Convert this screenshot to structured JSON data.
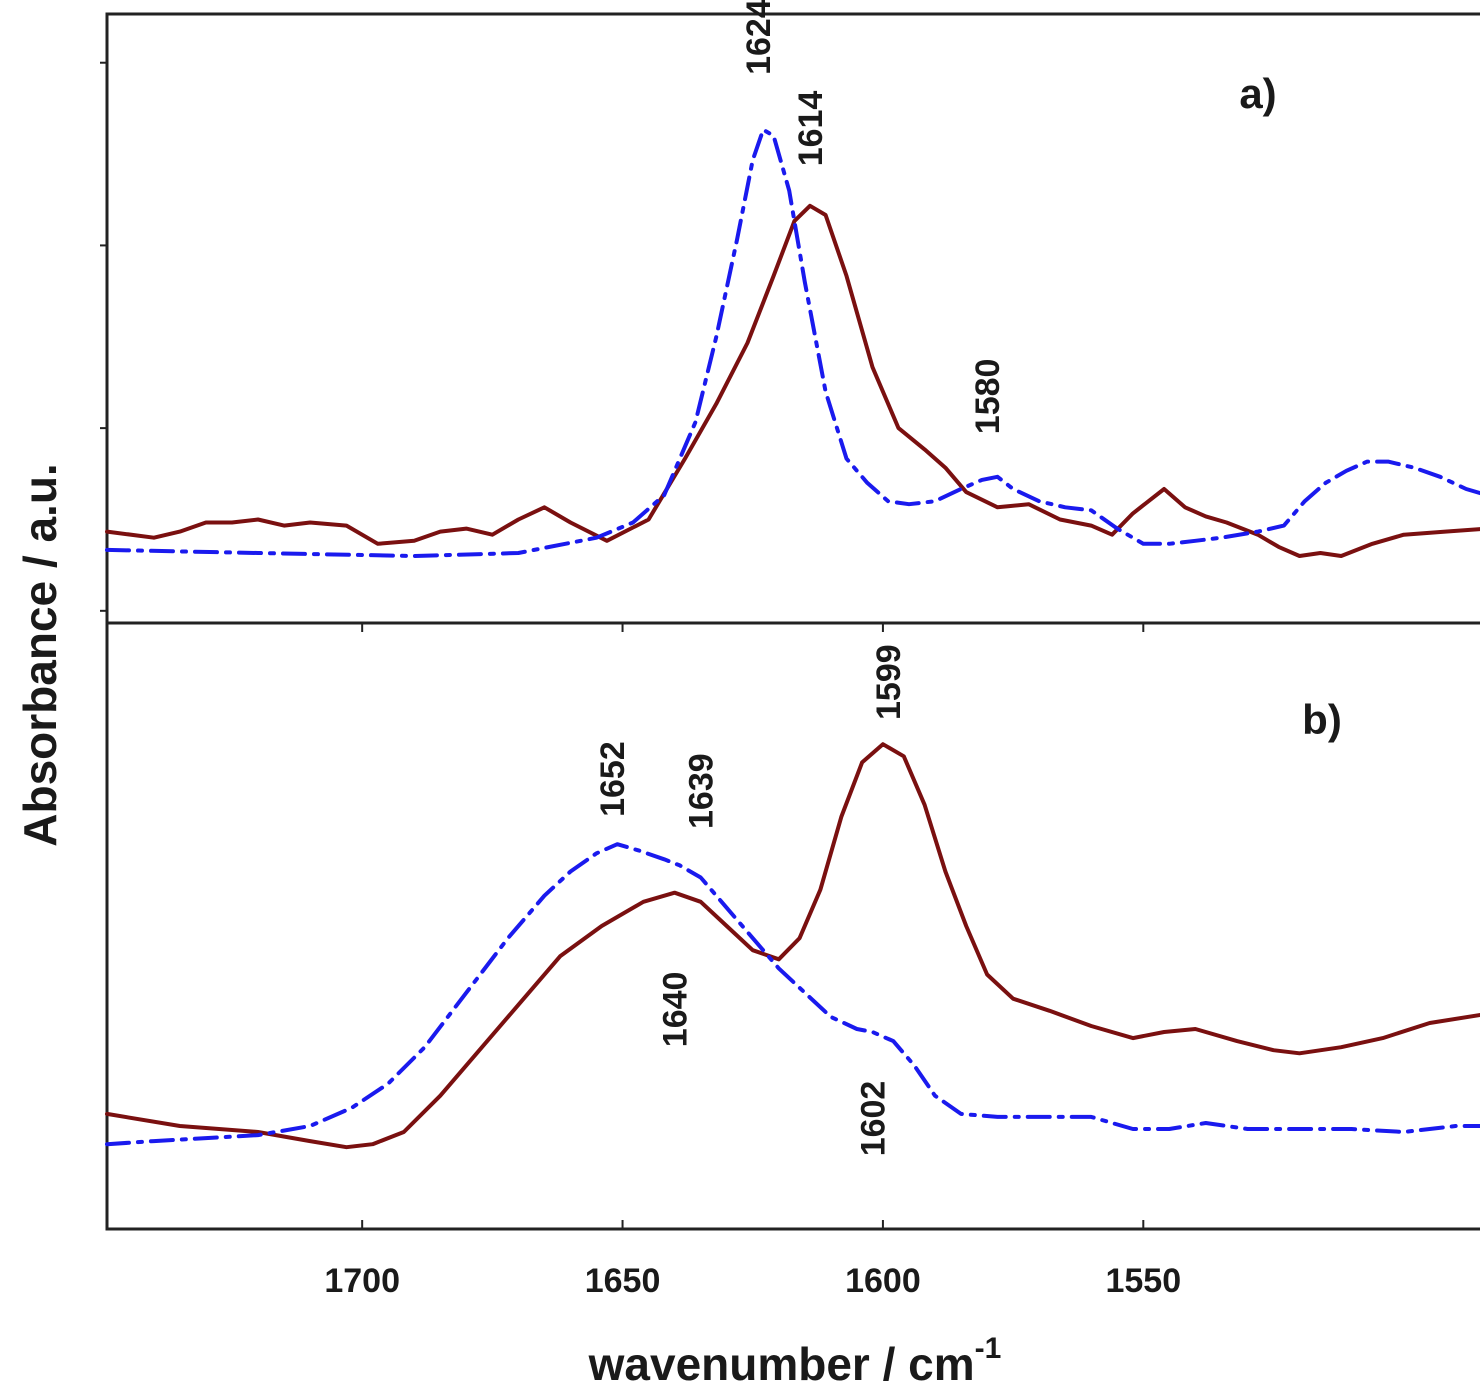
{
  "chart_data": {
    "type": "line",
    "ylabel": "Absorbance / a.u.",
    "xlabel": "wavenumber / cm",
    "xlabel_superscript": "-1",
    "x_reversed": true,
    "xlim": [
      1749,
      1484
    ],
    "x_ticks": [
      1700,
      1650,
      1600,
      1550
    ],
    "colors": {
      "solid": "#7a1010",
      "dashdot": "#1a1aee"
    },
    "panels": [
      {
        "label": "a)",
        "ylim": [
          0,
          1
        ],
        "y_ticks": [
          0.02,
          0.32,
          0.62,
          0.92
        ],
        "series": [
          {
            "style": "solid",
            "points": [
              [
                1749,
                0.15
              ],
              [
                1740,
                0.14
              ],
              [
                1735,
                0.15
              ],
              [
                1730,
                0.165
              ],
              [
                1725,
                0.165
              ],
              [
                1720,
                0.17
              ],
              [
                1715,
                0.16
              ],
              [
                1710,
                0.165
              ],
              [
                1703,
                0.16
              ],
              [
                1697,
                0.13
              ],
              [
                1690,
                0.135
              ],
              [
                1685,
                0.15
              ],
              [
                1680,
                0.155
              ],
              [
                1675,
                0.145
              ],
              [
                1670,
                0.17
              ],
              [
                1665,
                0.19
              ],
              [
                1660,
                0.165
              ],
              [
                1653,
                0.135
              ],
              [
                1645,
                0.17
              ],
              [
                1638,
                0.27
              ],
              [
                1632,
                0.36
              ],
              [
                1626,
                0.46
              ],
              [
                1621,
                0.57
              ],
              [
                1617,
                0.66
              ],
              [
                1614,
                0.685
              ],
              [
                1611,
                0.67
              ],
              [
                1607,
                0.57
              ],
              [
                1602,
                0.42
              ],
              [
                1597,
                0.32
              ],
              [
                1592,
                0.285
              ],
              [
                1588,
                0.255
              ],
              [
                1584,
                0.215
              ],
              [
                1578,
                0.19
              ],
              [
                1572,
                0.195
              ],
              [
                1566,
                0.17
              ],
              [
                1560,
                0.16
              ],
              [
                1556,
                0.145
              ],
              [
                1552,
                0.18
              ],
              [
                1549,
                0.2
              ],
              [
                1546,
                0.22
              ],
              [
                1542,
                0.19
              ],
              [
                1538,
                0.175
              ],
              [
                1534,
                0.165
              ],
              [
                1528,
                0.145
              ],
              [
                1524,
                0.125
              ],
              [
                1520,
                0.11
              ],
              [
                1516,
                0.115
              ],
              [
                1512,
                0.11
              ],
              [
                1506,
                0.13
              ],
              [
                1500,
                0.145
              ],
              [
                1492,
                0.15
              ],
              [
                1484,
                0.155
              ]
            ]
          },
          {
            "style": "dashdot",
            "points": [
              [
                1749,
                0.12
              ],
              [
                1720,
                0.115
              ],
              [
                1690,
                0.11
              ],
              [
                1670,
                0.115
              ],
              [
                1655,
                0.14
              ],
              [
                1648,
                0.165
              ],
              [
                1642,
                0.21
              ],
              [
                1636,
                0.33
              ],
              [
                1632,
                0.47
              ],
              [
                1628,
                0.63
              ],
              [
                1625,
                0.76
              ],
              [
                1623,
                0.81
              ],
              [
                1621,
                0.8
              ],
              [
                1618,
                0.71
              ],
              [
                1615,
                0.56
              ],
              [
                1611,
                0.38
              ],
              [
                1607,
                0.27
              ],
              [
                1603,
                0.23
              ],
              [
                1599,
                0.2
              ],
              [
                1595,
                0.195
              ],
              [
                1590,
                0.2
              ],
              [
                1585,
                0.22
              ],
              [
                1581,
                0.235
              ],
              [
                1578,
                0.24
              ],
              [
                1575,
                0.22
              ],
              [
                1570,
                0.2
              ],
              [
                1565,
                0.19
              ],
              [
                1560,
                0.185
              ],
              [
                1555,
                0.155
              ],
              [
                1550,
                0.13
              ],
              [
                1545,
                0.13
              ],
              [
                1540,
                0.135
              ],
              [
                1535,
                0.14
              ],
              [
                1528,
                0.15
              ],
              [
                1523,
                0.16
              ],
              [
                1519,
                0.2
              ],
              [
                1515,
                0.23
              ],
              [
                1511,
                0.25
              ],
              [
                1507,
                0.265
              ],
              [
                1503,
                0.265
              ],
              [
                1498,
                0.255
              ],
              [
                1493,
                0.24
              ],
              [
                1488,
                0.22
              ],
              [
                1484,
                0.21
              ]
            ]
          }
        ],
        "annotations": [
          {
            "text": "1624",
            "x": 1624,
            "y": 0.9
          },
          {
            "text": "1614",
            "x": 1614,
            "y": 0.75
          },
          {
            "text": "1580",
            "x": 1580,
            "y": 0.31
          }
        ]
      },
      {
        "label": "b)",
        "ylim": [
          0,
          1
        ],
        "y_ticks": [],
        "series": [
          {
            "style": "solid",
            "points": [
              [
                1749,
                0.19
              ],
              [
                1735,
                0.17
              ],
              [
                1720,
                0.16
              ],
              [
                1710,
                0.145
              ],
              [
                1703,
                0.135
              ],
              [
                1698,
                0.14
              ],
              [
                1692,
                0.16
              ],
              [
                1685,
                0.22
              ],
              [
                1678,
                0.29
              ],
              [
                1670,
                0.37
              ],
              [
                1662,
                0.45
              ],
              [
                1654,
                0.5
              ],
              [
                1646,
                0.54
              ],
              [
                1640,
                0.555
              ],
              [
                1635,
                0.54
              ],
              [
                1630,
                0.5
              ],
              [
                1625,
                0.46
              ],
              [
                1620,
                0.445
              ],
              [
                1616,
                0.48
              ],
              [
                1612,
                0.56
              ],
              [
                1608,
                0.68
              ],
              [
                1604,
                0.77
              ],
              [
                1600,
                0.8
              ],
              [
                1596,
                0.78
              ],
              [
                1592,
                0.7
              ],
              [
                1588,
                0.59
              ],
              [
                1584,
                0.5
              ],
              [
                1580,
                0.42
              ],
              [
                1575,
                0.38
              ],
              [
                1568,
                0.36
              ],
              [
                1560,
                0.335
              ],
              [
                1552,
                0.315
              ],
              [
                1546,
                0.325
              ],
              [
                1540,
                0.33
              ],
              [
                1532,
                0.31
              ],
              [
                1525,
                0.295
              ],
              [
                1520,
                0.29
              ],
              [
                1512,
                0.3
              ],
              [
                1504,
                0.315
              ],
              [
                1495,
                0.34
              ],
              [
                1484,
                0.355
              ]
            ]
          },
          {
            "style": "dashdot",
            "points": [
              [
                1749,
                0.14
              ],
              [
                1740,
                0.145
              ],
              [
                1730,
                0.15
              ],
              [
                1720,
                0.155
              ],
              [
                1710,
                0.17
              ],
              [
                1702,
                0.2
              ],
              [
                1695,
                0.24
              ],
              [
                1688,
                0.3
              ],
              [
                1680,
                0.39
              ],
              [
                1672,
                0.48
              ],
              [
                1665,
                0.55
              ],
              [
                1660,
                0.59
              ],
              [
                1655,
                0.62
              ],
              [
                1651,
                0.635
              ],
              [
                1647,
                0.625
              ],
              [
                1642,
                0.61
              ],
              [
                1639,
                0.6
              ],
              [
                1635,
                0.58
              ],
              [
                1630,
                0.53
              ],
              [
                1625,
                0.48
              ],
              [
                1620,
                0.43
              ],
              [
                1615,
                0.39
              ],
              [
                1610,
                0.35
              ],
              [
                1605,
                0.33
              ],
              [
                1602,
                0.325
              ],
              [
                1598,
                0.31
              ],
              [
                1594,
                0.27
              ],
              [
                1590,
                0.22
              ],
              [
                1585,
                0.19
              ],
              [
                1578,
                0.185
              ],
              [
                1570,
                0.185
              ],
              [
                1560,
                0.185
              ],
              [
                1552,
                0.165
              ],
              [
                1545,
                0.165
              ],
              [
                1538,
                0.175
              ],
              [
                1530,
                0.165
              ],
              [
                1520,
                0.165
              ],
              [
                1510,
                0.165
              ],
              [
                1500,
                0.16
              ],
              [
                1490,
                0.17
              ],
              [
                1484,
                0.17
              ]
            ]
          }
        ],
        "annotations": [
          {
            "text": "1652",
            "x": 1652,
            "y": 0.68
          },
          {
            "text": "1639",
            "x": 1635,
            "y": 0.66
          },
          {
            "text": "1599",
            "x": 1599,
            "y": 0.84
          },
          {
            "text": "1640",
            "x": 1640,
            "y": 0.3
          },
          {
            "text": "1602",
            "x": 1602,
            "y": 0.12
          }
        ]
      }
    ]
  }
}
